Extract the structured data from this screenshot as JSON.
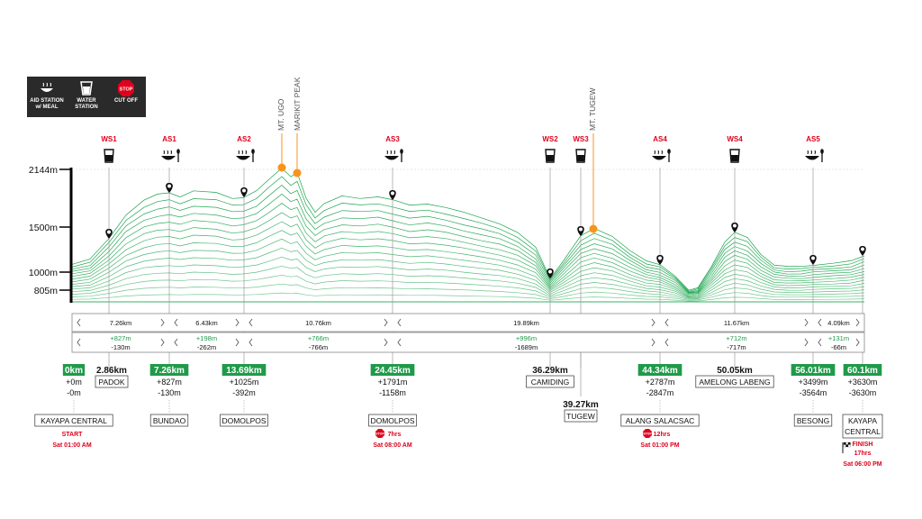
{
  "legend": {
    "aid_station": "AID STATION w/ MEAL",
    "water_station": "WATER STATION",
    "cut_off": "CUT OFF",
    "stop_text": "STOP"
  },
  "colors": {
    "profile": "#17a34a",
    "label_red": "#e0001b",
    "peak_orange": "#f7941d",
    "km_green": "#1f9a4a",
    "dark": "#111111",
    "guide": "#9a9a9a"
  },
  "y_axis": {
    "labels": [
      "2144m",
      "1500m",
      "1000m",
      "805m"
    ]
  },
  "stations": [
    {
      "code": "WS1",
      "type": "water"
    },
    {
      "code": "AS1",
      "type": "aid"
    },
    {
      "code": "AS2",
      "type": "aid"
    },
    {
      "code": "AS3",
      "type": "aid"
    },
    {
      "code": "WS2",
      "type": "water"
    },
    {
      "code": "WS3",
      "type": "water"
    },
    {
      "code": "AS4",
      "type": "aid"
    },
    {
      "code": "WS4",
      "type": "water"
    },
    {
      "code": "AS5",
      "type": "aid"
    }
  ],
  "peaks": [
    "MT. UGO",
    "MARIKIT PEAK",
    "MT. TUGEW"
  ],
  "segments": [
    {
      "distance": "7.26km",
      "gain": "+827m",
      "loss": "-130m"
    },
    {
      "distance": "6.43km",
      "gain": "+198m",
      "loss": "-262m"
    },
    {
      "distance": "10.76km",
      "gain": "+766m",
      "loss": "-766m"
    },
    {
      "distance": "19.89km",
      "gain": "+996m",
      "loss": "-1689m"
    },
    {
      "distance": "11.67km",
      "gain": "+712m",
      "loss": "-717m"
    },
    {
      "distance": "4.09km",
      "gain": "+131m",
      "loss": "-66m"
    }
  ],
  "checkpoints": [
    {
      "km": "0km",
      "gain": "+0m",
      "loss": "-0m",
      "name": "KAYAPA CENTRAL",
      "note": "START",
      "time": "Sat 01:00 AM"
    },
    {
      "km": "2.86km",
      "name": "PADOK"
    },
    {
      "km": "7.26km",
      "gain": "+827m",
      "loss": "-130m",
      "name": "BUNDAO"
    },
    {
      "km": "13.69km",
      "gain": "+1025m",
      "loss": "-392m",
      "name": "DOMOLPOS"
    },
    {
      "km": "24.45km",
      "gain": "+1791m",
      "loss": "-1158m",
      "name": "DOMOLPOS",
      "cutoff": "7hrs",
      "time": "Sat 08:00 AM"
    },
    {
      "km": "36.29km",
      "name": "CAMIDING"
    },
    {
      "km": "39.27km",
      "name": "TUGEW"
    },
    {
      "km": "44.34km",
      "gain": "+2787m",
      "loss": "-2847m",
      "name": "ALANG SALACSAC",
      "cutoff": "12hrs",
      "time": "Sat 01:00 PM"
    },
    {
      "km": "50.05km",
      "name": "AMELONG LABENG"
    },
    {
      "km": "56.01km",
      "gain": "+3499m",
      "loss": "-3564m",
      "name": "BESONG"
    },
    {
      "km": "60.1km",
      "gain": "+3630m",
      "loss": "-3630m",
      "name_line1": "KAYAPA",
      "name_line2": "CENTRAL",
      "note": "FINISH",
      "cutoff": "17hrs",
      "time": "Sat 06:00 PM"
    }
  ]
}
